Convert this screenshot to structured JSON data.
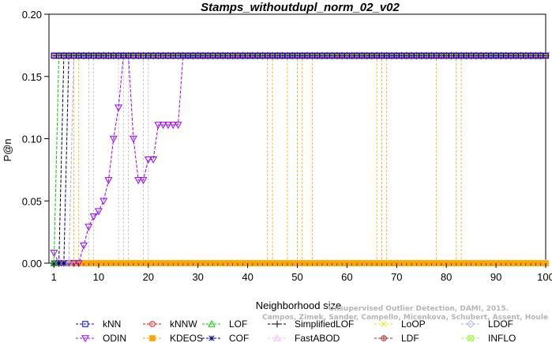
{
  "chart_data": {
    "type": "line",
    "title": "Stamps_withoutdupl_norm_02_v02",
    "xlabel": "Neighborhood size",
    "ylabel": "P@n",
    "xlim": [
      0,
      100
    ],
    "ylim": [
      0,
      0.2
    ],
    "x_ticks": [
      1,
      10,
      20,
      30,
      40,
      50,
      60,
      70,
      80,
      90,
      100
    ],
    "y_ticks": [
      "0.00",
      "0.05",
      "0.10",
      "0.15",
      "0.20"
    ],
    "grid": false,
    "legend_position": "bottom",
    "credit": {
      "line1": "Unsupervised Outlier Detection, DAMI, 2015.",
      "line2": "Campos, Zimek, Sander, Campello, Micenkova, Schubert, Assent, Houle"
    },
    "series": [
      {
        "name": "kNN",
        "color": "#0000ff",
        "marker": "square",
        "points": [
          [
            1,
            0.1667
          ],
          [
            100,
            0.1667
          ]
        ]
      },
      {
        "name": "kNNW",
        "color": "#ff0000",
        "marker": "circle",
        "points": [
          [
            1,
            0.1667
          ],
          [
            100,
            0.1667
          ]
        ]
      },
      {
        "name": "LOF",
        "color": "#00cc00",
        "marker": "triangle-up",
        "points": [
          [
            1,
            0.0
          ],
          [
            2,
            0.1667
          ],
          [
            100,
            0.1667
          ]
        ]
      },
      {
        "name": "SimplifiedLOF",
        "color": "#000000",
        "marker": "plus",
        "points": [
          [
            1,
            0.0
          ],
          [
            2,
            0.0
          ],
          [
            3,
            0.1667
          ],
          [
            100,
            0.1667
          ]
        ]
      },
      {
        "name": "LoOP",
        "color": "#e6e600",
        "marker": "x",
        "points": [
          [
            1,
            0.0
          ],
          [
            3,
            0.0
          ],
          [
            4,
            0.1667
          ],
          [
            100,
            0.1667
          ]
        ]
      },
      {
        "name": "LDOF",
        "color": "#a9a9ff",
        "marker": "diamond",
        "points": [
          [
            1,
            0.0
          ],
          [
            4,
            0.0
          ],
          [
            5,
            0.1667
          ],
          [
            100,
            0.1667
          ]
        ]
      },
      {
        "name": "ODIN",
        "color": "#9900ff",
        "marker": "triangle-down",
        "points": [
          [
            1,
            0.0083
          ],
          [
            2,
            0.0
          ],
          [
            3,
            0.0
          ],
          [
            4,
            0.0
          ],
          [
            5,
            0.0
          ],
          [
            6,
            0.0
          ],
          [
            7,
            0.0142
          ],
          [
            8,
            0.0292
          ],
          [
            9,
            0.0375
          ],
          [
            10,
            0.0417
          ],
          [
            11,
            0.05
          ],
          [
            12,
            0.0667
          ],
          [
            13,
            0.1
          ],
          [
            14,
            0.125
          ],
          [
            15,
            0.1667
          ],
          [
            16,
            0.1667
          ],
          [
            17,
            0.1
          ],
          [
            18,
            0.0667
          ],
          [
            19,
            0.0667
          ],
          [
            20,
            0.0833
          ],
          [
            21,
            0.0833
          ],
          [
            22,
            0.1111
          ],
          [
            23,
            0.1111
          ],
          [
            24,
            0.1111
          ],
          [
            25,
            0.1111
          ],
          [
            26,
            0.1111
          ],
          [
            27,
            0.1667
          ],
          [
            100,
            0.1667
          ]
        ]
      },
      {
        "name": "KDEOS",
        "color": "#ffa500",
        "marker": "square-filled",
        "points": [
          [
            1,
            0.0
          ],
          [
            100,
            0.0
          ]
        ]
      },
      {
        "name": "COF",
        "color": "#000080",
        "marker": "star",
        "points": [
          [
            1,
            0.0
          ],
          [
            3,
            0.0
          ],
          [
            4,
            0.1667
          ],
          [
            100,
            0.1667
          ]
        ]
      },
      {
        "name": "FastABOD",
        "color": "#ffb3ff",
        "marker": "triangle-up",
        "points": [
          [
            1,
            0.0
          ],
          [
            100,
            0.0
          ]
        ]
      },
      {
        "name": "LDF",
        "color": "#b22222",
        "marker": "circle-plus",
        "points": [
          [
            1,
            0.1667
          ],
          [
            100,
            0.1667
          ]
        ]
      },
      {
        "name": "INFLO",
        "color": "#99ff33",
        "marker": "square-x",
        "points": [
          [
            1,
            0.1667
          ],
          [
            100,
            0.1667
          ]
        ]
      }
    ],
    "grey_spikes": [
      {
        "color": "#c0c0c0",
        "x": [
          8,
          9,
          14,
          15,
          16,
          19,
          20
        ]
      }
    ],
    "orange_spikes": [
      {
        "color": "#ffa500",
        "x": [
          5,
          6,
          44,
          45,
          48,
          50,
          51,
          53,
          66,
          67,
          68,
          78,
          82,
          83
        ]
      }
    ]
  }
}
